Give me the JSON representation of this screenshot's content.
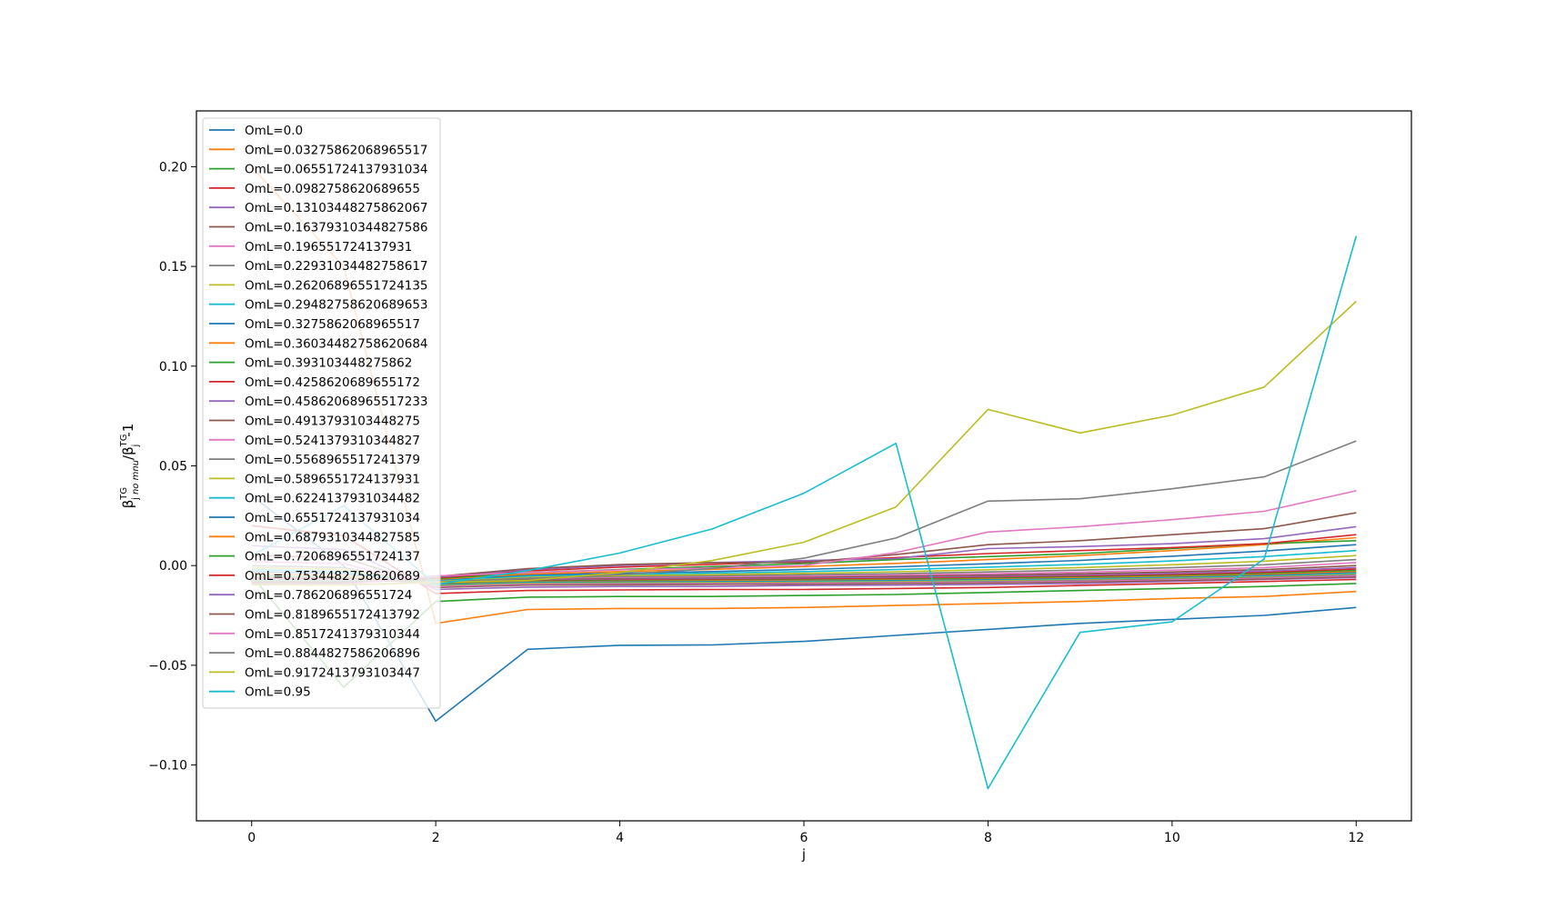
{
  "chart_data": {
    "type": "line",
    "xlabel": "j",
    "ylabel_main": "β",
    "ylabel_sub1": "j",
    "ylabel_sub1b": "no mnu",
    "ylabel_sup1": "TG",
    "ylabel_slash": "/β",
    "ylabel_sub2": "j",
    "ylabel_sup2": "TG",
    "ylabel_tail": "-1",
    "xlim": [
      -0.6,
      12.6
    ],
    "ylim": [
      -0.128,
      0.228
    ],
    "xticks": [
      0,
      2,
      4,
      6,
      8,
      10,
      12
    ],
    "yticks": [
      -0.1,
      -0.05,
      0.0,
      0.05,
      0.1,
      0.15,
      0.2
    ],
    "ytick_labels": [
      "−0.10",
      "−0.05",
      "0.00",
      "0.05",
      "0.10",
      "0.15",
      "0.20"
    ],
    "xtick_labels": [
      "0",
      "2",
      "4",
      "6",
      "8",
      "10",
      "12"
    ],
    "grid": false,
    "legend_position": "upper-left",
    "x": [
      0,
      1,
      2,
      3,
      4,
      5,
      6,
      7,
      8,
      9,
      10,
      11,
      12
    ],
    "series": [
      {
        "name": "OmL=0.0",
        "color": "#1f77b4",
        "values": [
          0.035,
          0.0,
          -0.078,
          -0.042,
          -0.04,
          -0.0398,
          -0.038,
          -0.035,
          -0.032,
          -0.029,
          -0.027,
          -0.025,
          -0.021
        ]
      },
      {
        "name": "OmL=0.03275862068965517",
        "color": "#ff7f0e",
        "values": [
          0.2,
          0.15,
          -0.029,
          -0.022,
          -0.0215,
          -0.0215,
          -0.021,
          -0.02,
          -0.019,
          -0.018,
          -0.0165,
          -0.0155,
          -0.013
        ]
      },
      {
        "name": "OmL=0.06551724137931034",
        "color": "#2ca02c",
        "values": [
          -0.005,
          -0.061,
          -0.018,
          -0.0158,
          -0.0155,
          -0.0155,
          -0.015,
          -0.0145,
          -0.0135,
          -0.0125,
          -0.0115,
          -0.0105,
          -0.009
        ]
      },
      {
        "name": "OmL=0.0982758620689655",
        "color": "#d62728",
        "values": [
          0.02,
          0.015,
          -0.014,
          -0.0125,
          -0.0122,
          -0.012,
          -0.012,
          -0.0115,
          -0.011,
          -0.01,
          -0.009,
          -0.008,
          -0.007
        ]
      },
      {
        "name": "OmL=0.13103448275862067",
        "color": "#9467bd",
        "values": [
          0.01,
          0.008,
          -0.012,
          -0.0108,
          -0.0105,
          -0.0105,
          -0.01,
          -0.0098,
          -0.0095,
          -0.009,
          -0.008,
          -0.007,
          -0.006
        ]
      },
      {
        "name": "OmL=0.16379310344827586",
        "color": "#8c564b",
        "values": [
          0.005,
          0.004,
          -0.011,
          -0.0098,
          -0.0096,
          -0.0095,
          -0.0093,
          -0.009,
          -0.0087,
          -0.0082,
          -0.0075,
          -0.0067,
          -0.0055
        ]
      },
      {
        "name": "OmL=0.196551724137931",
        "color": "#e377c2",
        "values": [
          0.002,
          0.001,
          -0.0105,
          -0.0092,
          -0.009,
          -0.0089,
          -0.0087,
          -0.0084,
          -0.0081,
          -0.0076,
          -0.0069,
          -0.0061,
          -0.005
        ]
      },
      {
        "name": "OmL=0.22931034482758617",
        "color": "#7f7f7f",
        "values": [
          0.0,
          -0.001,
          -0.01,
          -0.0088,
          -0.0086,
          -0.0085,
          -0.0083,
          -0.008,
          -0.0077,
          -0.0072,
          -0.0065,
          -0.0057,
          -0.0045
        ]
      },
      {
        "name": "OmL=0.26206896551724135",
        "color": "#bcbd22",
        "values": [
          -0.001,
          -0.002,
          -0.0098,
          -0.0085,
          -0.0083,
          -0.0082,
          -0.008,
          -0.0077,
          -0.0073,
          -0.0068,
          -0.0061,
          -0.0053,
          -0.004
        ]
      },
      {
        "name": "OmL=0.29482758620689653",
        "color": "#17becf",
        "values": [
          -0.002,
          -0.003,
          -0.0095,
          -0.0082,
          -0.008,
          -0.0079,
          -0.0077,
          -0.0074,
          -0.007,
          -0.0065,
          -0.0058,
          -0.005,
          -0.0037
        ]
      },
      {
        "name": "OmL=0.3275862068965517",
        "color": "#1f77b4",
        "values": [
          -0.003,
          -0.004,
          -0.0092,
          -0.008,
          -0.0078,
          -0.0076,
          -0.0074,
          -0.0071,
          -0.0067,
          -0.0062,
          -0.0055,
          -0.0047,
          -0.0033
        ]
      },
      {
        "name": "OmL=0.36034482758620684",
        "color": "#ff7f0e",
        "values": [
          -0.004,
          -0.005,
          -0.009,
          -0.0077,
          -0.0075,
          -0.0073,
          -0.0071,
          -0.0068,
          -0.0064,
          -0.0059,
          -0.0052,
          -0.0043,
          -0.0029
        ]
      },
      {
        "name": "OmL=0.393103448275862",
        "color": "#2ca02c",
        "values": [
          -0.005,
          -0.006,
          -0.0088,
          -0.0075,
          -0.0072,
          -0.007,
          -0.0068,
          -0.0065,
          -0.0061,
          -0.0055,
          -0.0048,
          -0.0039,
          -0.0024
        ]
      },
      {
        "name": "OmL=0.4258620689655172",
        "color": "#d62728",
        "values": [
          -0.006,
          -0.0065,
          -0.0086,
          -0.0072,
          -0.0069,
          -0.0067,
          -0.0065,
          -0.0062,
          -0.0057,
          -0.0051,
          -0.0044,
          -0.0034,
          -0.0018
        ]
      },
      {
        "name": "OmL=0.45862068965517233",
        "color": "#9467bd",
        "values": [
          -0.0065,
          -0.007,
          -0.0084,
          -0.007,
          -0.0066,
          -0.0064,
          -0.0061,
          -0.0058,
          -0.0053,
          -0.0047,
          -0.0039,
          -0.0028,
          -0.001
        ]
      },
      {
        "name": "OmL=0.4913793103448275",
        "color": "#8c564b",
        "values": [
          -0.007,
          -0.0072,
          -0.0082,
          -0.0067,
          -0.0063,
          -0.006,
          -0.0057,
          -0.0053,
          -0.0048,
          -0.0041,
          -0.0032,
          -0.002,
          0.0
        ]
      },
      {
        "name": "OmL=0.5241379310344827",
        "color": "#e377c2",
        "values": [
          -0.0072,
          -0.0074,
          -0.008,
          -0.0064,
          -0.0059,
          -0.0056,
          -0.0052,
          -0.0047,
          -0.0041,
          -0.0033,
          -0.0023,
          -0.001,
          0.0015
        ]
      },
      {
        "name": "OmL=0.5568965517241379",
        "color": "#7f7f7f",
        "values": [
          -0.0074,
          -0.0076,
          -0.0078,
          -0.006,
          -0.0055,
          -0.0051,
          -0.0046,
          -0.004,
          -0.0032,
          -0.0023,
          -0.0011,
          0.0004,
          0.003
        ]
      },
      {
        "name": "OmL=0.5896551724137931",
        "color": "#bcbd22",
        "values": [
          -0.0076,
          -0.0078,
          -0.0076,
          -0.0056,
          -0.005,
          -0.0045,
          -0.0039,
          -0.0031,
          -0.0021,
          -0.001,
          0.0004,
          0.0022,
          0.005
        ]
      },
      {
        "name": "OmL=0.6224137931034482",
        "color": "#17becf",
        "values": [
          -0.0078,
          -0.008,
          -0.0074,
          -0.0052,
          -0.0044,
          -0.0038,
          -0.003,
          -0.002,
          -0.0008,
          0.0006,
          0.0023,
          0.0045,
          0.0075
        ]
      },
      {
        "name": "OmL=0.6551724137931034",
        "color": "#1f77b4",
        "values": [
          -0.008,
          -0.0082,
          -0.0072,
          -0.0047,
          -0.0038,
          -0.003,
          -0.0019,
          -0.0006,
          0.0009,
          0.0026,
          0.0047,
          0.0073,
          0.0105
        ]
      },
      {
        "name": "OmL=0.6879310344827585",
        "color": "#ff7f0e",
        "values": [
          -0.0082,
          -0.0084,
          -0.0069,
          -0.0042,
          -0.003,
          -0.0019,
          -0.0005,
          0.0011,
          0.003,
          0.005,
          0.0075,
          0.0105,
          0.014
        ]
      },
      {
        "name": "OmL=0.7206896551724137",
        "color": "#2ca02c",
        "values": [
          -0.0084,
          -0.0086,
          -0.0066,
          -0.0035,
          -0.002,
          -0.0005,
          0.001,
          0.003,
          0.0045,
          0.006,
          0.0085,
          0.011,
          0.0125
        ]
      },
      {
        "name": "OmL=0.7534482758620689",
        "color": "#d62728",
        "values": [
          -0.0086,
          -0.0088,
          -0.0063,
          -0.0027,
          -0.0008,
          0.0006,
          0.0022,
          0.004,
          0.006,
          0.0075,
          0.009,
          0.011,
          0.0155
        ]
      },
      {
        "name": "OmL=0.786206896551724",
        "color": "#9467bd",
        "values": [
          -0.0088,
          -0.009,
          -0.0059,
          -0.002,
          0.0,
          0.0015,
          0.0025,
          0.0035,
          0.0085,
          0.0095,
          0.011,
          0.0135,
          0.0195
        ]
      },
      {
        "name": "OmL=0.8189655172413792",
        "color": "#8c564b",
        "values": [
          -0.009,
          -0.0092,
          -0.0055,
          -0.0015,
          0.0005,
          0.0015,
          0.0015,
          0.0055,
          0.0105,
          0.0125,
          0.0155,
          0.0185,
          0.0265
        ]
      },
      {
        "name": "OmL=0.8517241379310344",
        "color": "#e377c2",
        "values": [
          -0.0092,
          -0.0094,
          -0.0052,
          -0.0035,
          -0.0022,
          -0.0012,
          0.0,
          0.0065,
          0.0168,
          0.0195,
          0.023,
          0.0272,
          0.0375
        ]
      },
      {
        "name": "OmL=0.8844827586206896",
        "color": "#7f7f7f",
        "values": [
          -0.0094,
          -0.0096,
          -0.0085,
          -0.0065,
          -0.0045,
          -0.0015,
          0.0037,
          0.0138,
          0.0323,
          0.0335,
          0.0385,
          0.0445,
          0.0625
        ]
      },
      {
        "name": "OmL=0.9172413793103447",
        "color": "#bcbd22",
        "values": [
          -0.0096,
          -0.0098,
          -0.0085,
          -0.0075,
          -0.0035,
          0.0025,
          0.0117,
          0.0294,
          0.0783,
          0.0665,
          0.0755,
          0.0895,
          0.1325
        ]
      },
      {
        "name": "OmL=0.95",
        "color": "#17becf",
        "values": [
          0.005,
          0.03,
          -0.0095,
          -0.0025,
          0.0063,
          0.0183,
          0.0363,
          0.0613,
          -0.1118,
          -0.0335,
          -0.0282,
          0.0033,
          0.1653
        ]
      }
    ]
  }
}
